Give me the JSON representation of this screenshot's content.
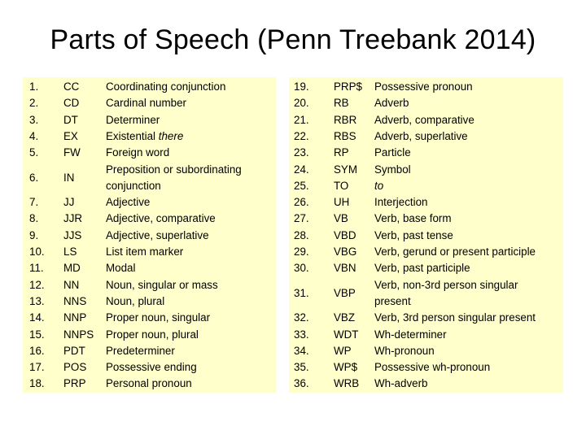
{
  "title": "Parts of Speech (Penn Treebank 2014)",
  "left_column": [
    {
      "num": "1.",
      "tag": "CC",
      "desc": "Coordinating conjunction"
    },
    {
      "num": "2.",
      "tag": "CD",
      "desc": "Cardinal number"
    },
    {
      "num": "3.",
      "tag": "DT",
      "desc": "Determiner"
    },
    {
      "num": "4.",
      "tag": "EX",
      "desc": "Existential ",
      "desc_italic": "there"
    },
    {
      "num": "5.",
      "tag": "FW",
      "desc": "Foreign word"
    },
    {
      "num": "6.",
      "tag": "IN",
      "desc": "Preposition or subordinating",
      "desc2": "conjunction"
    },
    {
      "num": "7.",
      "tag": "JJ",
      "desc": "Adjective"
    },
    {
      "num": "8.",
      "tag": "JJR",
      "desc": "Adjective, comparative"
    },
    {
      "num": "9.",
      "tag": "JJS",
      "desc": "Adjective, superlative"
    },
    {
      "num": "10.",
      "tag": "LS",
      "desc": "List item marker"
    },
    {
      "num": "11.",
      "tag": "MD",
      "desc": "Modal"
    },
    {
      "num": "12.",
      "tag": "NN",
      "desc": "Noun, singular or mass"
    },
    {
      "num": "13.",
      "tag": "NNS",
      "desc": "Noun, plural"
    },
    {
      "num": "14.",
      "tag": "NNP",
      "desc": "Proper noun, singular"
    },
    {
      "num": "15.",
      "tag": "NNPS",
      "desc": "Proper noun, plural"
    },
    {
      "num": "16.",
      "tag": "PDT",
      "desc": "Predeterminer"
    },
    {
      "num": "17.",
      "tag": "POS",
      "desc": "Possessive ending"
    },
    {
      "num": "18.",
      "tag": "PRP",
      "desc": "Personal pronoun"
    }
  ],
  "right_column": [
    {
      "num": "19.",
      "tag": "PRP$",
      "desc": "Possessive pronoun"
    },
    {
      "num": "20.",
      "tag": "RB",
      "desc": "Adverb"
    },
    {
      "num": "21.",
      "tag": "RBR",
      "desc": "Adverb, comparative"
    },
    {
      "num": "22.",
      "tag": "RBS",
      "desc": "Adverb, superlative"
    },
    {
      "num": "23.",
      "tag": "RP",
      "desc": "Particle"
    },
    {
      "num": "24.",
      "tag": "SYM",
      "desc": "Symbol"
    },
    {
      "num": "25.",
      "tag": "TO",
      "desc": "",
      "desc_italic": "to"
    },
    {
      "num": "26.",
      "tag": "UH",
      "desc": "Interjection"
    },
    {
      "num": "27.",
      "tag": "VB",
      "desc": "Verb, base form"
    },
    {
      "num": "28.",
      "tag": "VBD",
      "desc": "Verb, past tense"
    },
    {
      "num": "29.",
      "tag": "VBG",
      "desc": "Verb, gerund or present participle"
    },
    {
      "num": "30.",
      "tag": "VBN",
      "desc": "Verb, past participle"
    },
    {
      "num": "31.",
      "tag": "VBP",
      "desc": "Verb, non-3rd person singular",
      "desc2": "present"
    },
    {
      "num": "32.",
      "tag": "VBZ",
      "desc": "Verb, 3rd person singular present"
    },
    {
      "num": "33.",
      "tag": "WDT",
      "desc": "Wh-determiner"
    },
    {
      "num": "34.",
      "tag": "WP",
      "desc": "Wh-pronoun"
    },
    {
      "num": "35.",
      "tag": "WP$",
      "desc": "Possessive wh-pronoun"
    },
    {
      "num": "36.",
      "tag": "WRB",
      "desc": "Wh-adverb"
    }
  ],
  "colors": {
    "panel_background": "#ffffcc"
  }
}
